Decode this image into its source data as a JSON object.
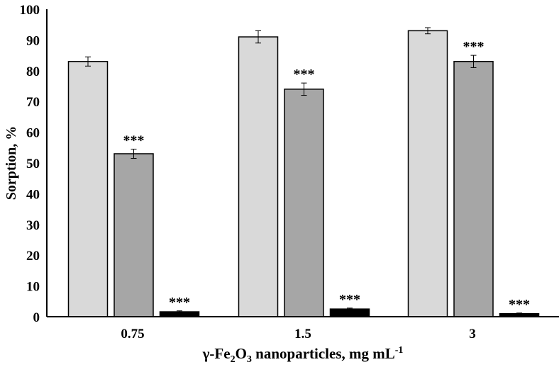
{
  "chart_data": {
    "type": "bar",
    "title": "",
    "xlabel": "γ-Fe2O3 nanoparticles, mg mL-1",
    "xlabel_parts": {
      "pre": "γ-Fe",
      "sub1": "2",
      "mid": "O",
      "sub2": "3",
      "post": " nanoparticles, mg mL",
      "sup": "-1"
    },
    "ylabel": "Sorption, %",
    "ylim": [
      0,
      100
    ],
    "yticks": [
      0,
      10,
      20,
      30,
      40,
      50,
      60,
      70,
      80,
      90,
      100
    ],
    "categories": [
      "0.75",
      "1.5",
      "3"
    ],
    "grid": false,
    "series": [
      {
        "name": "series 1",
        "color": "#d9d9d9",
        "values": [
          83,
          91,
          93
        ],
        "errors": [
          1.5,
          2,
          1
        ],
        "annotations": [
          "",
          "",
          ""
        ]
      },
      {
        "name": "series 2",
        "color": "#a6a6a6",
        "values": [
          53,
          74,
          83
        ],
        "errors": [
          1.5,
          2,
          2
        ],
        "annotations": [
          "***",
          "***",
          "***"
        ]
      },
      {
        "name": "series 3",
        "color": "#000000",
        "values": [
          1.6,
          2.5,
          1.0
        ],
        "errors": [
          0.3,
          0.3,
          0.2
        ],
        "annotations": [
          "***",
          "***",
          "***"
        ]
      }
    ]
  }
}
